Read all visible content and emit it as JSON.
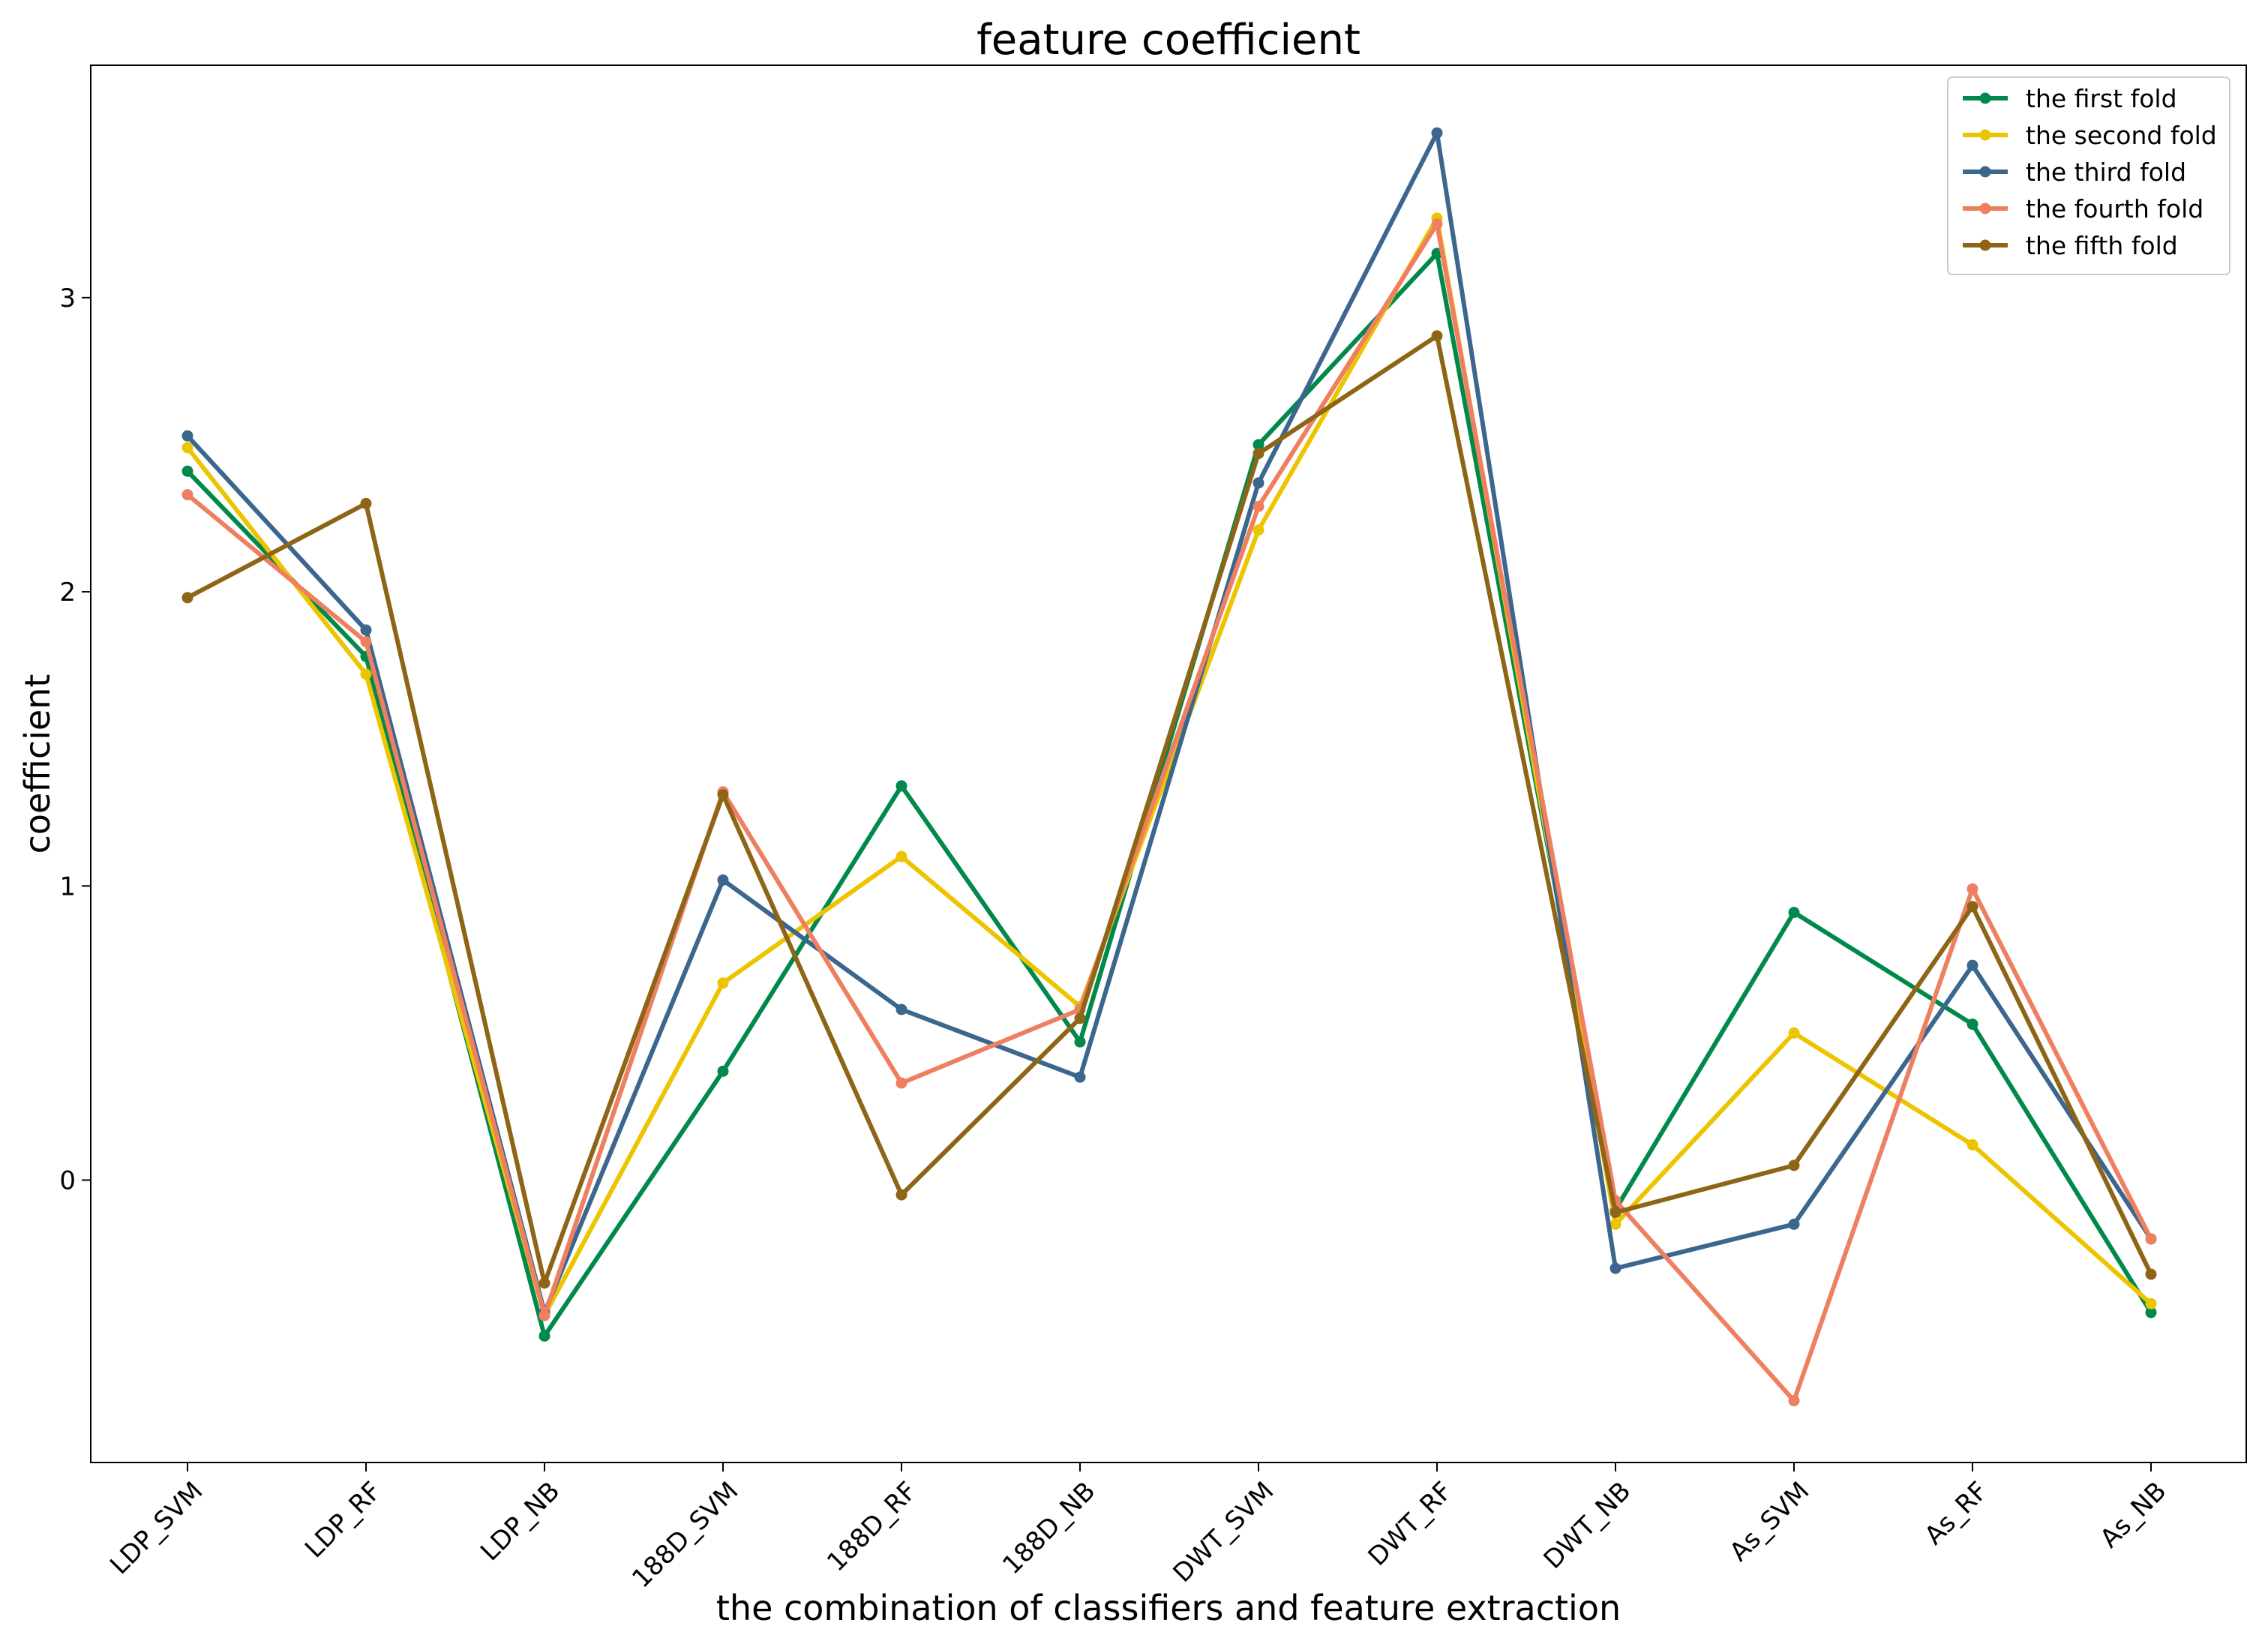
{
  "chart_data": {
    "type": "line",
    "title": "feature coefficient",
    "xlabel": "the combination of classifiers and feature extraction",
    "ylabel": "coefficient",
    "categories": [
      "LDP_SVM",
      "LDP_RF",
      "LDP_NB",
      "188D_SVM",
      "188D_RF",
      "188D_NB",
      "DWT_SVM",
      "DWT_RF",
      "DWT_NB",
      "As_SVM",
      "As_RF",
      "As_NB"
    ],
    "yticks": [
      0,
      1,
      2,
      3
    ],
    "ylim": [
      -0.96,
      3.79
    ],
    "grid": false,
    "legend_position": "top-right",
    "series": [
      {
        "name": "the first fold",
        "color": "#00894A",
        "values": [
          2.41,
          1.78,
          -0.53,
          0.37,
          1.34,
          0.47,
          2.5,
          3.15,
          -0.1,
          0.91,
          0.53,
          -0.45
        ]
      },
      {
        "name": "the second fold",
        "color": "#EDC400",
        "values": [
          2.49,
          1.72,
          -0.46,
          0.67,
          1.1,
          0.59,
          2.21,
          3.27,
          -0.15,
          0.5,
          0.12,
          -0.42
        ]
      },
      {
        "name": "the third fold",
        "color": "#3B668E",
        "values": [
          2.53,
          1.87,
          -0.45,
          1.02,
          0.58,
          0.35,
          2.37,
          3.56,
          -0.3,
          -0.15,
          0.73,
          -0.2
        ]
      },
      {
        "name": "the fourth fold",
        "color": "#EE8061",
        "values": [
          2.33,
          1.83,
          -0.46,
          1.32,
          0.33,
          0.58,
          2.29,
          3.25,
          -0.07,
          -0.75,
          0.99,
          -0.2
        ]
      },
      {
        "name": "the fifth fold",
        "color": "#8E6516",
        "values": [
          1.98,
          2.3,
          -0.35,
          1.31,
          -0.05,
          0.55,
          2.47,
          2.87,
          -0.11,
          0.05,
          0.93,
          -0.32
        ]
      }
    ]
  }
}
